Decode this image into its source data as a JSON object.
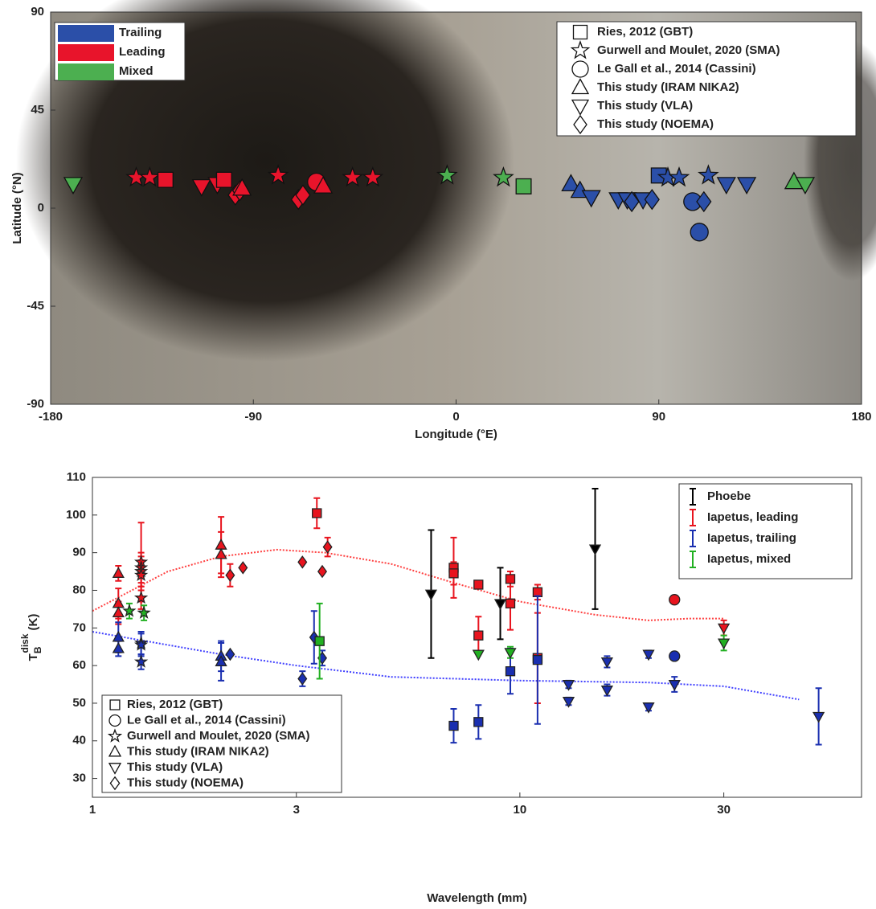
{
  "chart_data": [
    {
      "type": "scatter",
      "xlabel": "Longitude (°E)",
      "ylabel": "Latitude (°N)",
      "xlim": [
        -180,
        180
      ],
      "xticks": [
        -180,
        -90,
        0,
        90,
        180
      ],
      "ylim": [
        -90,
        90
      ],
      "yticks": [
        -90,
        -45,
        0,
        45,
        90
      ],
      "series": [
        {
          "name": "Trailing",
          "color": "#2b4fa8",
          "x": [
            51,
            55,
            60,
            72,
            76,
            78,
            83,
            87,
            90,
            94,
            99,
            105,
            108,
            110,
            112,
            120,
            129
          ],
          "y": [
            11,
            8,
            5,
            4,
            4,
            3,
            4,
            4,
            15,
            14,
            14,
            3,
            -11,
            3,
            15,
            11,
            11
          ],
          "markers": [
            "triangle",
            "triangle",
            "down",
            "down",
            "down",
            "diamond",
            "down",
            "diamond",
            "square",
            "star",
            "star",
            "circle",
            "circle",
            "diamond",
            "star",
            "down",
            "down"
          ]
        },
        {
          "name": "Leading",
          "color": "#e8142b",
          "x": [
            -142,
            -136,
            -129,
            -113,
            -106,
            -103,
            -98,
            -96,
            -95,
            -79,
            -70,
            -68,
            -62,
            -59,
            -46,
            -37
          ],
          "y": [
            14,
            14,
            13,
            10,
            11,
            13,
            6,
            8,
            9,
            15,
            4,
            6,
            12,
            10,
            14,
            14
          ],
          "markers": [
            "star",
            "star",
            "square",
            "down",
            "down",
            "square",
            "diamond",
            "diamond",
            "triangle",
            "star",
            "diamond",
            "diamond",
            "circle",
            "triangle",
            "star",
            "star"
          ]
        },
        {
          "name": "Mixed",
          "color": "#4caf50",
          "x": [
            -170,
            -4,
            21,
            30,
            150,
            155
          ],
          "y": [
            11,
            15,
            14,
            10,
            12,
            11
          ],
          "markers": [
            "down",
            "star",
            "star",
            "square",
            "triangle",
            "down"
          ]
        }
      ],
      "marker_legend": [
        {
          "label": "Ries, 2012 (GBT)",
          "shape": "square"
        },
        {
          "label": "Gurwell and Moulet, 2020 (SMA)",
          "shape": "star"
        },
        {
          "label": "Le Gall et al., 2014 (Cassini)",
          "shape": "circle"
        },
        {
          "label": "This study (IRAM NIKA2)",
          "shape": "triangle"
        },
        {
          "label": "This study (VLA)",
          "shape": "down"
        },
        {
          "label": "This study (NOEMA)",
          "shape": "diamond"
        }
      ]
    },
    {
      "type": "scatter",
      "xlabel": "Wavelength (mm)",
      "ylabel": {
        "base": "T",
        "sub": "B",
        "sup": "disk",
        "unit": "(K)"
      },
      "xscale": "log",
      "xlim": [
        1,
        63
      ],
      "xticks": [
        1,
        3,
        10,
        30
      ],
      "ylim": [
        25,
        110
      ],
      "yticks": [
        30,
        40,
        50,
        60,
        70,
        80,
        90,
        100,
        110
      ],
      "series": [
        {
          "name": "Phoebe",
          "color": "#000000",
          "x": [
            6.2,
            9,
            15
          ],
          "y": [
            79,
            76.5,
            91
          ],
          "errors": [
            17,
            9.5,
            16
          ],
          "markers": [
            "down",
            "down",
            "down"
          ]
        },
        {
          "name": "Iapetus, leading",
          "color": "#e8141e",
          "x": [
            1.15,
            1.15,
            1.15,
            1.3,
            1.3,
            1.3,
            1.3,
            1.3,
            2.0,
            2.0,
            2.1,
            2.25,
            3.1,
            3.35,
            3.45,
            3.55,
            7,
            7,
            8,
            8,
            9.5,
            9.5,
            11,
            11,
            23,
            30
          ],
          "y": [
            84.5,
            76.5,
            74,
            87.5,
            86,
            85,
            84,
            78,
            92,
            89.5,
            84,
            86,
            87.5,
            100.5,
            85,
            91.5,
            86,
            84.5,
            81.5,
            68,
            83,
            76.5,
            79.5,
            62,
            77.5,
            70
          ],
          "errors": [
            2,
            4,
            3,
            10.5,
            4,
            4,
            4,
            3,
            7.5,
            6,
            3,
            null,
            null,
            4,
            null,
            2.5,
            8,
            3,
            1,
            5,
            2,
            7,
            2,
            12,
            null,
            2
          ],
          "markers": [
            "triangle",
            "triangle",
            "triangle",
            "star",
            "star",
            "star",
            "star",
            "star",
            "triangle",
            "triangle",
            "diamond",
            "diamond",
            "diamond",
            "square",
            "diamond",
            "diamond",
            "square",
            "square",
            "square",
            "square",
            "square",
            "square",
            "square",
            "square",
            "circle",
            "down"
          ]
        },
        {
          "name": "Iapetus, trailing",
          "color": "#1a2fb0",
          "x": [
            1.15,
            1.15,
            1.3,
            1.3,
            1.3,
            2.0,
            2.0,
            2.1,
            3.1,
            3.3,
            3.45,
            7,
            8,
            9.5,
            11,
            13,
            13,
            16,
            16,
            20,
            20,
            23,
            23,
            50
          ],
          "y": [
            67.5,
            64.5,
            66,
            65.5,
            61,
            62.5,
            61,
            63,
            56.5,
            67.5,
            62,
            44,
            45,
            58.5,
            61.5,
            55,
            50.5,
            61,
            53.5,
            63,
            49,
            55,
            62.5,
            46.5
          ],
          "errors": [
            4,
            2,
            3,
            3,
            2,
            4,
            5,
            null,
            2,
            7,
            2,
            4.5,
            4.5,
            6,
            17,
            1,
            1,
            1.5,
            1.5,
            1,
            1,
            2,
            null,
            7.5
          ],
          "markers": [
            "triangle",
            "triangle",
            "star",
            "star",
            "star",
            "triangle",
            "triangle",
            "diamond",
            "diamond",
            "diamond",
            "diamond",
            "square",
            "square",
            "square",
            "square",
            "down",
            "down",
            "down",
            "down",
            "down",
            "down",
            "down",
            "circle",
            "down"
          ]
        },
        {
          "name": "Iapetus, mixed",
          "color": "#22b022",
          "x": [
            1.22,
            1.32,
            3.4,
            8,
            9.5,
            30
          ],
          "y": [
            74.5,
            74,
            66.5,
            63,
            63.5,
            66
          ],
          "errors": [
            2,
            2,
            10,
            null,
            1.5,
            2
          ],
          "markers": [
            "star",
            "star",
            "square",
            "down",
            "down",
            "down"
          ]
        }
      ],
      "fits": [
        {
          "color": "#ff4040",
          "x": [
            1,
            1.5,
            2,
            2.7,
            3.5,
            5,
            7,
            10,
            15,
            20,
            25,
            30
          ],
          "y": [
            74.5,
            85,
            89,
            90.8,
            90,
            87,
            82,
            77,
            73.5,
            72,
            72.5,
            72.5
          ]
        },
        {
          "color": "#4040ff",
          "x": [
            1,
            2,
            3,
            5,
            10,
            20,
            30,
            45
          ],
          "y": [
            69,
            63,
            60,
            57,
            56,
            55.5,
            54.5,
            51
          ]
        }
      ],
      "marker_legend": [
        {
          "label": "Ries, 2012 (GBT)",
          "shape": "square"
        },
        {
          "label": "Le Gall et al., 2014 (Cassini)",
          "shape": "circle"
        },
        {
          "label": "Gurwell and Moulet, 2020 (SMA)",
          "shape": "star"
        },
        {
          "label": "This study (IRAM NIKA2)",
          "shape": "triangle"
        },
        {
          "label": "This study (VLA)",
          "shape": "down"
        },
        {
          "label": "This study (NOEMA)",
          "shape": "diamond"
        }
      ]
    }
  ]
}
